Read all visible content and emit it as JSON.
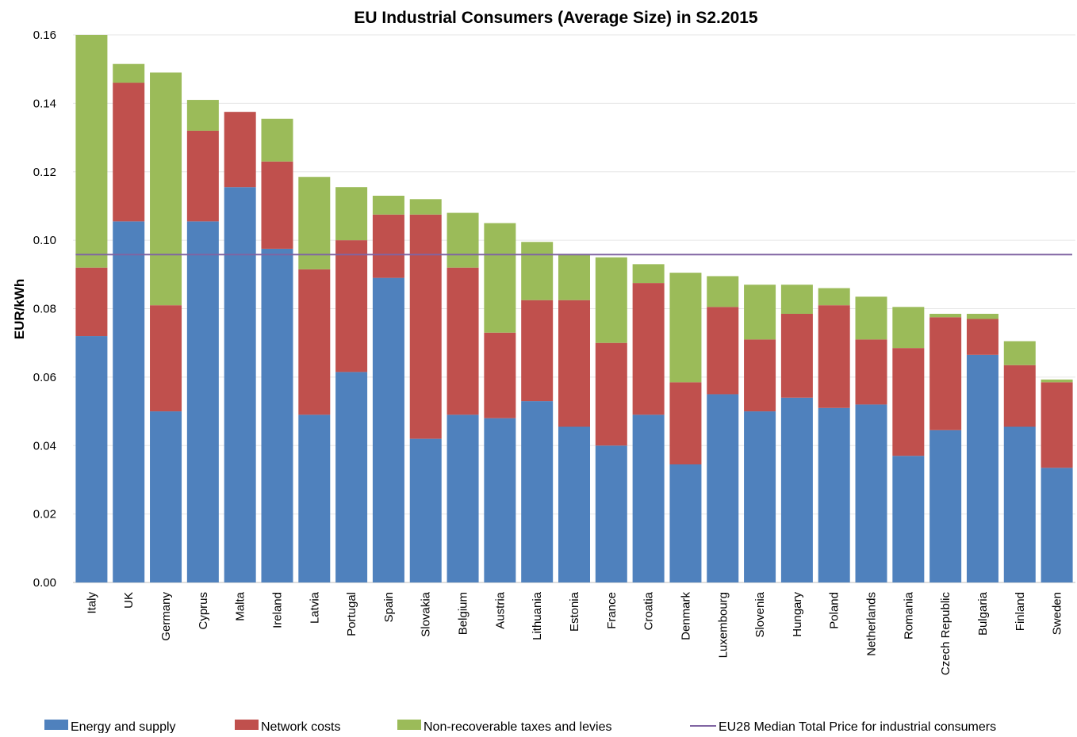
{
  "chart_data": {
    "type": "bar",
    "stacked": true,
    "title": "EU Industrial Consumers (Average Size) in S2.2015",
    "xlabel": "",
    "ylabel": "EUR/kWh",
    "ylim": [
      0,
      0.16
    ],
    "yticks": [
      "0.00",
      "0.02",
      "0.04",
      "0.06",
      "0.08",
      "0.10",
      "0.12",
      "0.14",
      "0.16"
    ],
    "grid": true,
    "legend_position": "bottom",
    "categories": [
      "Italy",
      "UK",
      "Germany",
      "Cyprus",
      "Malta",
      "Ireland",
      "Latvia",
      "Portugal",
      "Spain",
      "Slovakia",
      "Belgium",
      "Austria",
      "Lithuania",
      "Estonia",
      "France",
      "Croatia",
      "Denmark",
      "Luxembourg",
      "Slovenia",
      "Hungary",
      "Poland",
      "Netherlands",
      "Romania",
      "Czech Republic",
      "Bulgaria",
      "Finland",
      "Sweden"
    ],
    "series": [
      {
        "name": "Energy and supply",
        "color": "#4f81bd",
        "values": [
          0.072,
          0.1055,
          0.05,
          0.1055,
          0.1155,
          0.0975,
          0.049,
          0.0615,
          0.089,
          0.042,
          0.049,
          0.048,
          0.053,
          0.0455,
          0.04,
          0.049,
          0.0345,
          0.055,
          0.05,
          0.054,
          0.051,
          0.052,
          0.037,
          0.0445,
          0.0665,
          0.0455,
          0.0335
        ]
      },
      {
        "name": "Network costs",
        "color": "#c0504d",
        "values": [
          0.02,
          0.0405,
          0.031,
          0.0265,
          0.022,
          0.0255,
          0.0425,
          0.0385,
          0.0185,
          0.0655,
          0.043,
          0.025,
          0.0295,
          0.037,
          0.03,
          0.0385,
          0.024,
          0.0255,
          0.021,
          0.0245,
          0.03,
          0.019,
          0.0315,
          0.033,
          0.0105,
          0.018,
          0.025
        ]
      },
      {
        "name": "Non-recoverable taxes and levies",
        "color": "#9bbb59",
        "values": [
          0.068,
          0.0055,
          0.068,
          0.009,
          0.0,
          0.0125,
          0.027,
          0.0155,
          0.0055,
          0.0045,
          0.016,
          0.032,
          0.017,
          0.0135,
          0.025,
          0.0055,
          0.032,
          0.009,
          0.016,
          0.0085,
          0.005,
          0.0125,
          0.012,
          0.001,
          0.0015,
          0.007,
          0.0008
        ]
      }
    ],
    "reference_line": {
      "name": "EU28 Median Total Price for industrial consumers",
      "value": 0.0958,
      "color": "#8064a2"
    }
  }
}
